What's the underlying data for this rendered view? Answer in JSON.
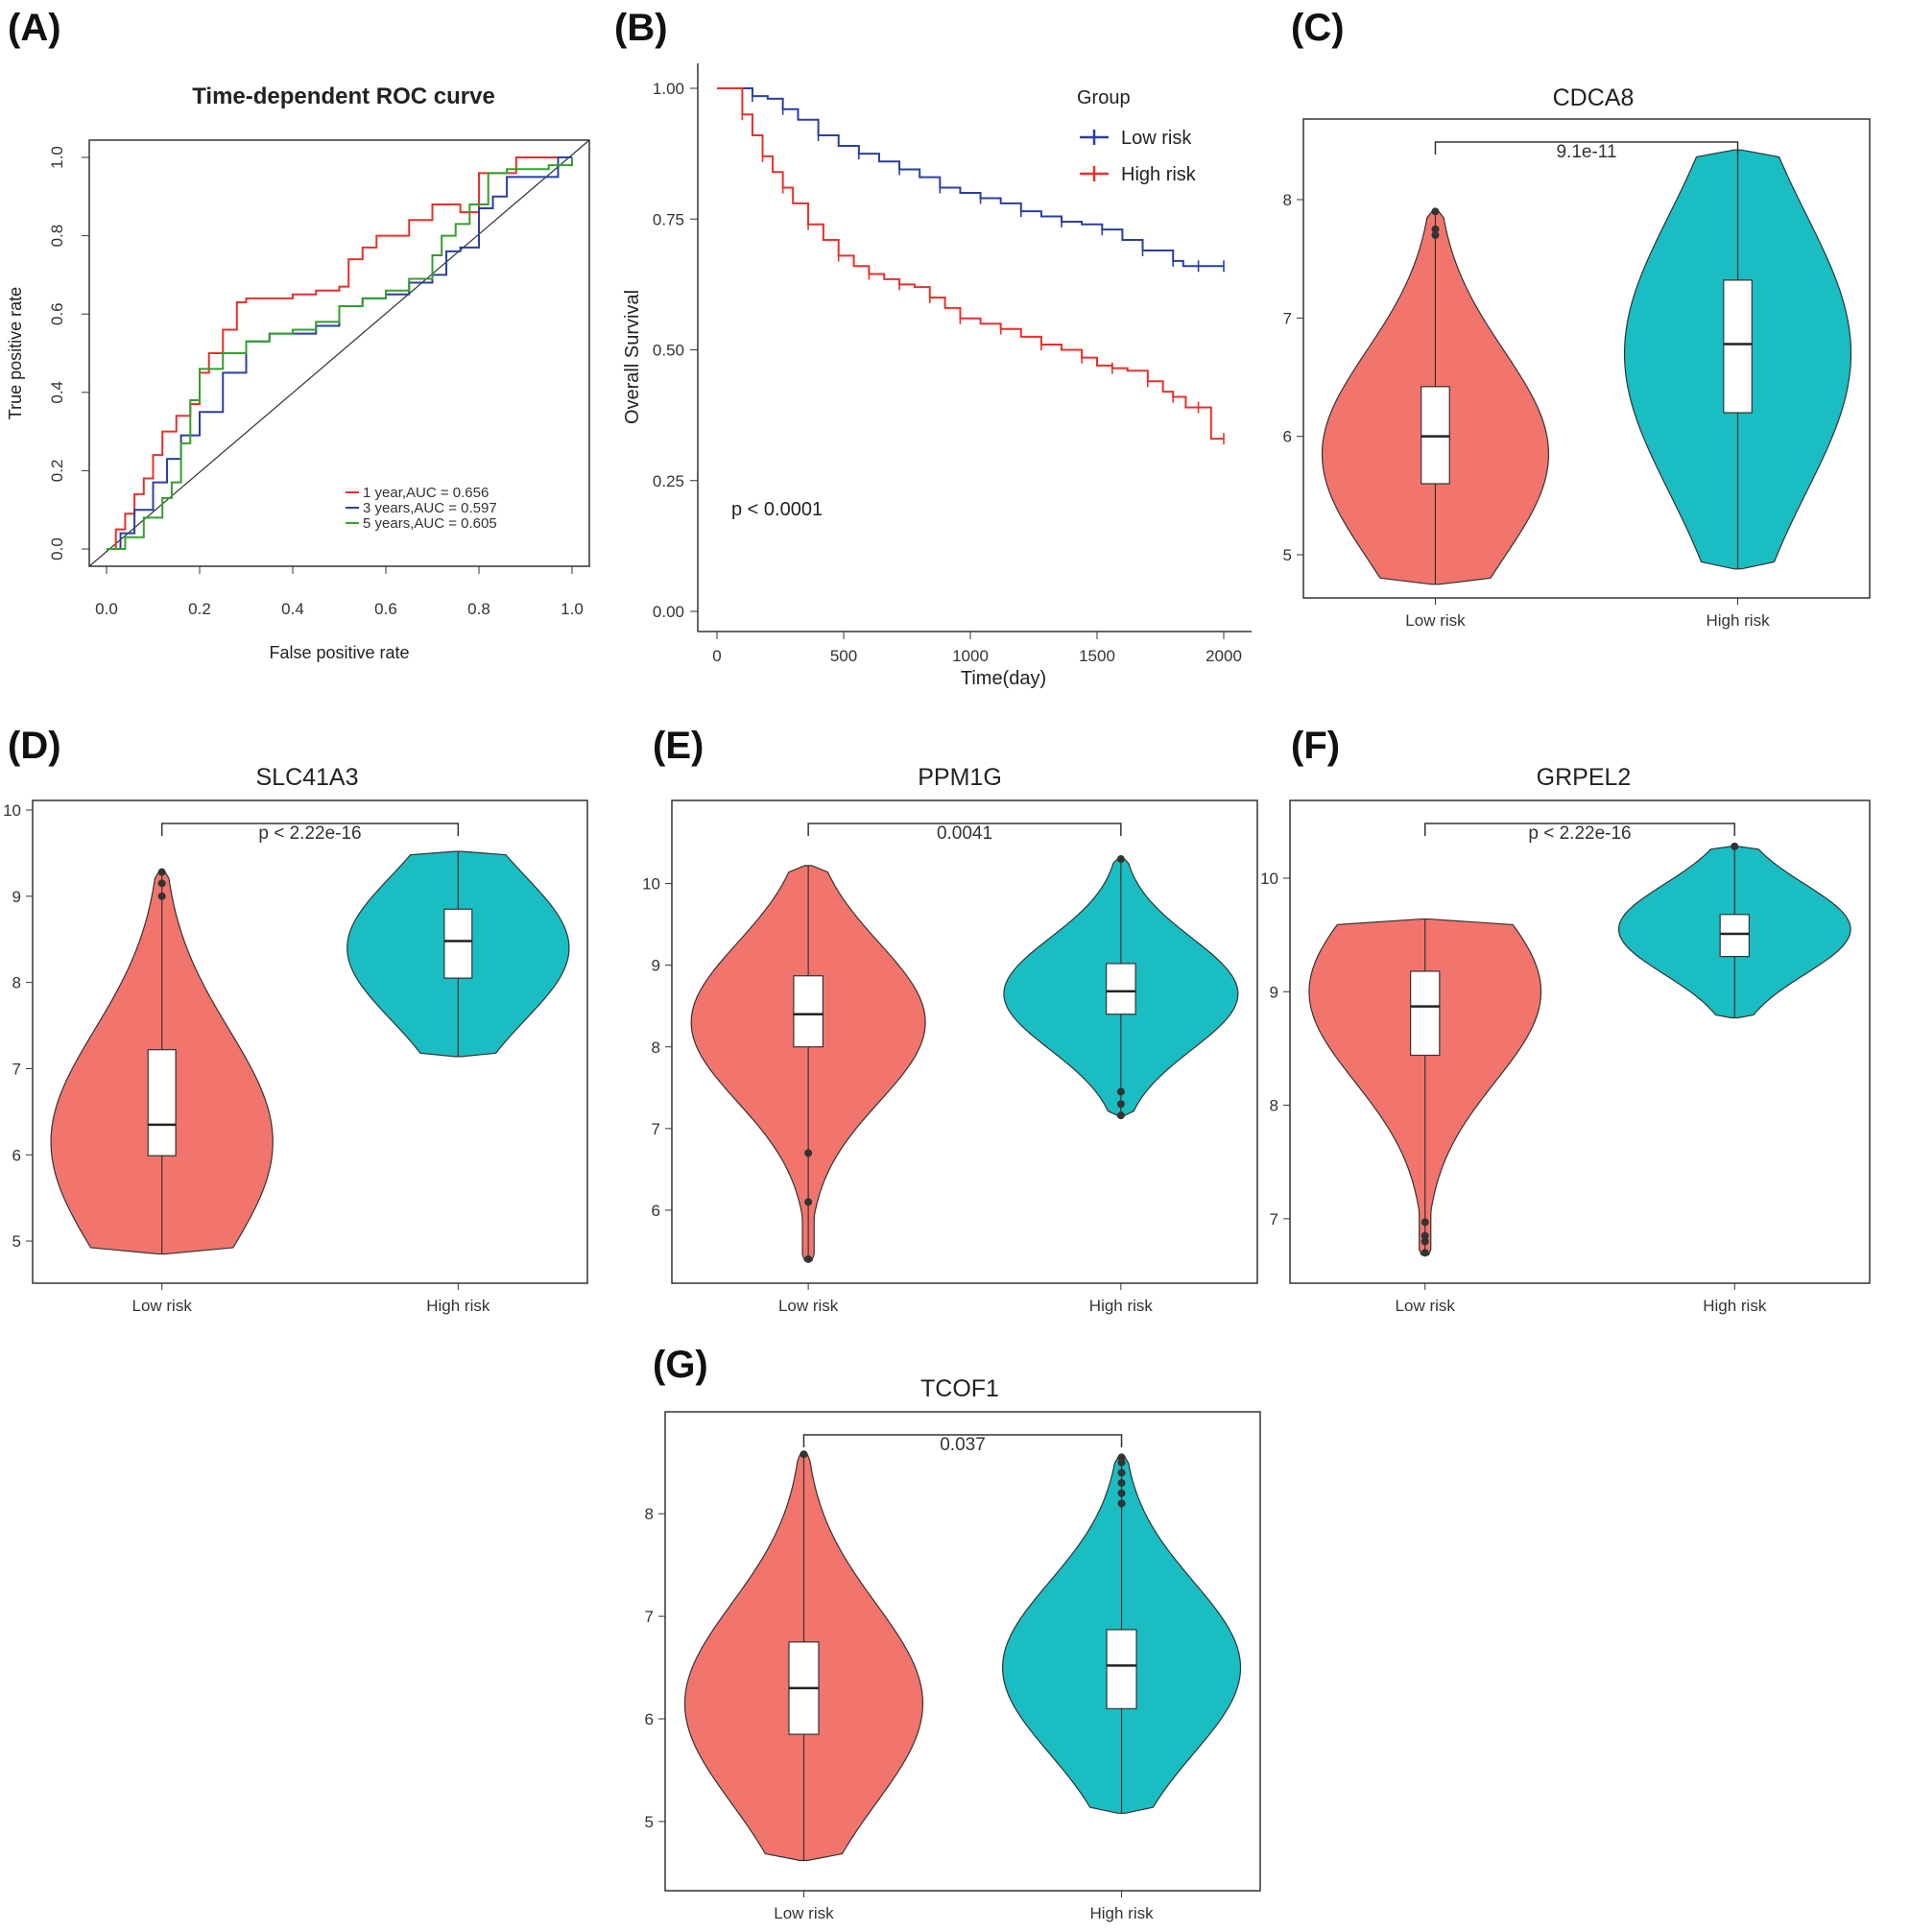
{
  "chart_data": [
    {
      "panel": "(A)",
      "type": "line",
      "title": "Time-dependent ROC curve",
      "xlabel": "False positive rate",
      "ylabel": "True positive rate",
      "xlim": [
        0,
        1
      ],
      "ylim": [
        0,
        1
      ],
      "xticks": [
        "0.0",
        "0.2",
        "0.4",
        "0.6",
        "0.8",
        "1.0"
      ],
      "yticks": [
        "0.0",
        "0.2",
        "0.4",
        "0.6",
        "0.8",
        "1.0"
      ],
      "legend_position": "bottom-right",
      "series": [
        {
          "name": "1 year,AUC = 0.656",
          "color": "#e8312a",
          "x": [
            0,
            0.02,
            0.04,
            0.06,
            0.08,
            0.1,
            0.12,
            0.15,
            0.18,
            0.2,
            0.22,
            0.25,
            0.28,
            0.3,
            0.33,
            0.35,
            0.4,
            0.45,
            0.5,
            0.52,
            0.55,
            0.58,
            0.6,
            0.65,
            0.7,
            0.72,
            0.76,
            0.8,
            0.83,
            0.88,
            0.92,
            0.96,
            1.0
          ],
          "y": [
            0,
            0.05,
            0.09,
            0.14,
            0.18,
            0.24,
            0.3,
            0.34,
            0.37,
            0.45,
            0.5,
            0.56,
            0.63,
            0.64,
            0.64,
            0.64,
            0.65,
            0.66,
            0.67,
            0.74,
            0.77,
            0.8,
            0.8,
            0.84,
            0.88,
            0.88,
            0.86,
            0.96,
            0.96,
            1.0,
            1.0,
            1.0,
            1.0
          ]
        },
        {
          "name": "3 years,AUC = 0.597",
          "color": "#2b3fa0",
          "x": [
            0,
            0.03,
            0.06,
            0.1,
            0.13,
            0.16,
            0.2,
            0.25,
            0.3,
            0.35,
            0.4,
            0.45,
            0.5,
            0.55,
            0.6,
            0.65,
            0.7,
            0.73,
            0.76,
            0.8,
            0.83,
            0.86,
            0.9,
            0.95,
            0.97,
            1.0
          ],
          "y": [
            0,
            0.04,
            0.1,
            0.17,
            0.23,
            0.29,
            0.35,
            0.45,
            0.53,
            0.55,
            0.55,
            0.57,
            0.62,
            0.64,
            0.65,
            0.68,
            0.7,
            0.76,
            0.77,
            0.87,
            0.9,
            0.95,
            0.95,
            0.95,
            1.0,
            1.0
          ]
        },
        {
          "name": "5 years,AUC = 0.605",
          "color": "#33a02c",
          "x": [
            0,
            0.04,
            0.08,
            0.12,
            0.14,
            0.16,
            0.18,
            0.2,
            0.25,
            0.3,
            0.35,
            0.4,
            0.45,
            0.5,
            0.55,
            0.6,
            0.65,
            0.7,
            0.72,
            0.75,
            0.78,
            0.82,
            0.86,
            0.9,
            0.95,
            1.0
          ],
          "y": [
            0,
            0.03,
            0.08,
            0.13,
            0.17,
            0.27,
            0.38,
            0.46,
            0.5,
            0.53,
            0.55,
            0.56,
            0.58,
            0.62,
            0.64,
            0.66,
            0.69,
            0.75,
            0.8,
            0.83,
            0.88,
            0.96,
            0.97,
            0.97,
            0.98,
            1.0
          ]
        }
      ]
    },
    {
      "panel": "(B)",
      "type": "line",
      "title": "",
      "xlabel": "Time(day)",
      "ylabel": "Overall Survival",
      "xlim": [
        0,
        2000
      ],
      "ylim": [
        0,
        1
      ],
      "xticks": [
        "0",
        "500",
        "1000",
        "1500",
        "2000"
      ],
      "yticks": [
        "0.00",
        "0.25",
        "0.50",
        "0.75",
        "1.00"
      ],
      "legend_title": "Group",
      "legend_position": "top-right",
      "annotation": "p < 0.0001",
      "series": [
        {
          "name": "Low risk",
          "color": "#2b3fa0",
          "x": [
            0,
            80,
            140,
            200,
            260,
            320,
            400,
            480,
            560,
            640,
            720,
            800,
            880,
            960,
            1040,
            1120,
            1200,
            1280,
            1360,
            1440,
            1520,
            1600,
            1680,
            1760,
            1800,
            1840,
            1900,
            1960,
            2000
          ],
          "y": [
            1.0,
            1.0,
            0.985,
            0.98,
            0.96,
            0.94,
            0.91,
            0.89,
            0.875,
            0.86,
            0.845,
            0.83,
            0.81,
            0.8,
            0.79,
            0.78,
            0.765,
            0.755,
            0.745,
            0.74,
            0.73,
            0.71,
            0.69,
            0.69,
            0.67,
            0.66,
            0.66,
            0.66,
            0.66
          ]
        },
        {
          "name": "High risk",
          "color": "#e8312a",
          "x": [
            0,
            60,
            100,
            140,
            180,
            220,
            260,
            300,
            360,
            420,
            480,
            540,
            600,
            660,
            720,
            780,
            840,
            900,
            960,
            1040,
            1120,
            1200,
            1280,
            1360,
            1440,
            1500,
            1560,
            1620,
            1700,
            1760,
            1800,
            1850,
            1900,
            1950,
            2000
          ],
          "y": [
            1.0,
            1.0,
            0.95,
            0.91,
            0.87,
            0.84,
            0.81,
            0.78,
            0.74,
            0.71,
            0.68,
            0.66,
            0.645,
            0.635,
            0.625,
            0.62,
            0.6,
            0.58,
            0.56,
            0.55,
            0.54,
            0.525,
            0.51,
            0.5,
            0.485,
            0.47,
            0.465,
            0.46,
            0.44,
            0.42,
            0.41,
            0.39,
            0.39,
            0.33,
            0.33
          ]
        }
      ]
    },
    {
      "panel": "(C)",
      "type": "violin",
      "title": "CDCA8",
      "pvalue": "9.1e-11",
      "ylim": [
        4.7,
        8.6
      ],
      "yticks": [
        5,
        6,
        7,
        8
      ],
      "categories": [
        "Low risk",
        "High risk"
      ],
      "groups": [
        {
          "name": "Low risk",
          "color": "#f1756c",
          "min": 4.75,
          "q1": 5.6,
          "median": 6.0,
          "q3": 6.42,
          "max": 7.9,
          "outliers": [
            7.7,
            7.75,
            7.9
          ],
          "peak": 5.85
        },
        {
          "name": "High risk",
          "color": "#19bdc2",
          "min": 4.88,
          "q1": 6.2,
          "median": 6.78,
          "q3": 7.32,
          "max": 8.42,
          "outliers": [],
          "peak": 6.7
        }
      ]
    },
    {
      "panel": "(D)",
      "type": "violin",
      "title": "SLC41A3",
      "pvalue": "p < 2.22e-16",
      "ylim": [
        4.6,
        10.0
      ],
      "yticks": [
        5,
        6,
        7,
        8,
        9,
        10
      ],
      "categories": [
        "Low risk",
        "High risk"
      ],
      "groups": [
        {
          "name": "Low risk",
          "color": "#f1756c",
          "min": 4.85,
          "q1": 5.99,
          "median": 6.35,
          "q3": 7.22,
          "max": 9.28,
          "outliers": [
            9.0,
            9.15,
            9.28
          ],
          "peak": 6.15
        },
        {
          "name": "High risk",
          "color": "#19bdc2",
          "min": 7.14,
          "q1": 8.05,
          "median": 8.48,
          "q3": 8.85,
          "max": 9.52,
          "outliers": [],
          "peak": 8.4
        }
      ]
    },
    {
      "panel": "(E)",
      "type": "violin",
      "title": "PPM1G",
      "pvalue": "0.0041",
      "ylim": [
        5.2,
        10.9
      ],
      "yticks": [
        6,
        7,
        8,
        9,
        10
      ],
      "categories": [
        "Low risk",
        "High risk"
      ],
      "groups": [
        {
          "name": "Low risk",
          "color": "#f1756c",
          "min": 5.38,
          "q1": 8.0,
          "median": 8.4,
          "q3": 8.87,
          "max": 10.22,
          "outliers": [
            5.4,
            6.1,
            6.7
          ],
          "peak": 8.3
        },
        {
          "name": "High risk",
          "color": "#19bdc2",
          "min": 7.16,
          "q1": 8.4,
          "median": 8.68,
          "q3": 9.02,
          "max": 10.3,
          "outliers": [
            7.16,
            7.3,
            7.45,
            10.3
          ],
          "peak": 8.65
        }
      ]
    },
    {
      "panel": "(F)",
      "type": "violin",
      "title": "GRPEL2",
      "pvalue": "p < 2.22e-16",
      "ylim": [
        6.5,
        10.6
      ],
      "yticks": [
        7,
        8,
        9,
        10
      ],
      "categories": [
        "Low risk",
        "High risk"
      ],
      "groups": [
        {
          "name": "Low risk",
          "color": "#f1756c",
          "min": 6.68,
          "q1": 8.44,
          "median": 8.87,
          "q3": 9.18,
          "max": 9.64,
          "outliers": [
            6.7,
            6.8,
            6.85,
            6.97
          ],
          "peak": 9.0
        },
        {
          "name": "High risk",
          "color": "#19bdc2",
          "min": 8.77,
          "q1": 9.31,
          "median": 9.51,
          "q3": 9.68,
          "max": 10.28,
          "outliers": [
            10.28
          ],
          "peak": 9.55
        }
      ]
    },
    {
      "panel": "(G)",
      "type": "violin",
      "title": "TCOF1",
      "pvalue": "0.037",
      "ylim": [
        4.4,
        8.9
      ],
      "yticks": [
        5,
        6,
        7,
        8
      ],
      "categories": [
        "Low risk",
        "High risk"
      ],
      "groups": [
        {
          "name": "Low risk",
          "color": "#f1756c",
          "min": 4.62,
          "q1": 5.85,
          "median": 6.3,
          "q3": 6.75,
          "max": 8.58,
          "outliers": [
            8.58
          ],
          "peak": 6.15
        },
        {
          "name": "High risk",
          "color": "#19bdc2",
          "min": 5.08,
          "q1": 6.1,
          "median": 6.52,
          "q3": 6.87,
          "max": 8.55,
          "outliers": [
            8.1,
            8.2,
            8.3,
            8.4,
            8.5,
            8.55
          ],
          "peak": 6.5
        }
      ]
    }
  ]
}
